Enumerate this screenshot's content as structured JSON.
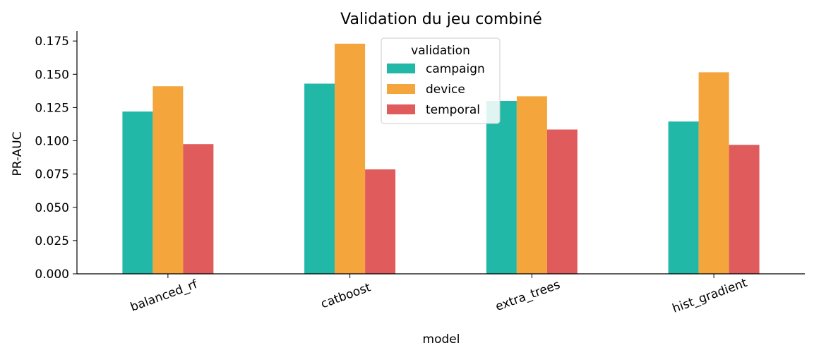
{
  "chart_data": {
    "type": "bar",
    "title": "Validation du jeu combiné",
    "xlabel": "model",
    "ylabel": "PR-AUC",
    "categories": [
      "balanced_rf",
      "catboost",
      "extra_trees",
      "hist_gradient"
    ],
    "series": [
      {
        "name": "campaign",
        "color": "#22b8a8",
        "values": [
          0.122,
          0.143,
          0.13,
          0.1145
        ]
      },
      {
        "name": "device",
        "color": "#f4a53b",
        "values": [
          0.141,
          0.173,
          0.1335,
          0.1515
        ]
      },
      {
        "name": "temporal",
        "color": "#e05c5c",
        "values": [
          0.0975,
          0.0785,
          0.1085,
          0.097
        ]
      }
    ],
    "ylim": [
      0,
      0.1825
    ],
    "yticks": [
      "0.000",
      "0.025",
      "0.050",
      "0.075",
      "0.100",
      "0.125",
      "0.150",
      "0.175"
    ],
    "legend": {
      "title": "validation",
      "placement": "top-center"
    },
    "grid": false
  }
}
